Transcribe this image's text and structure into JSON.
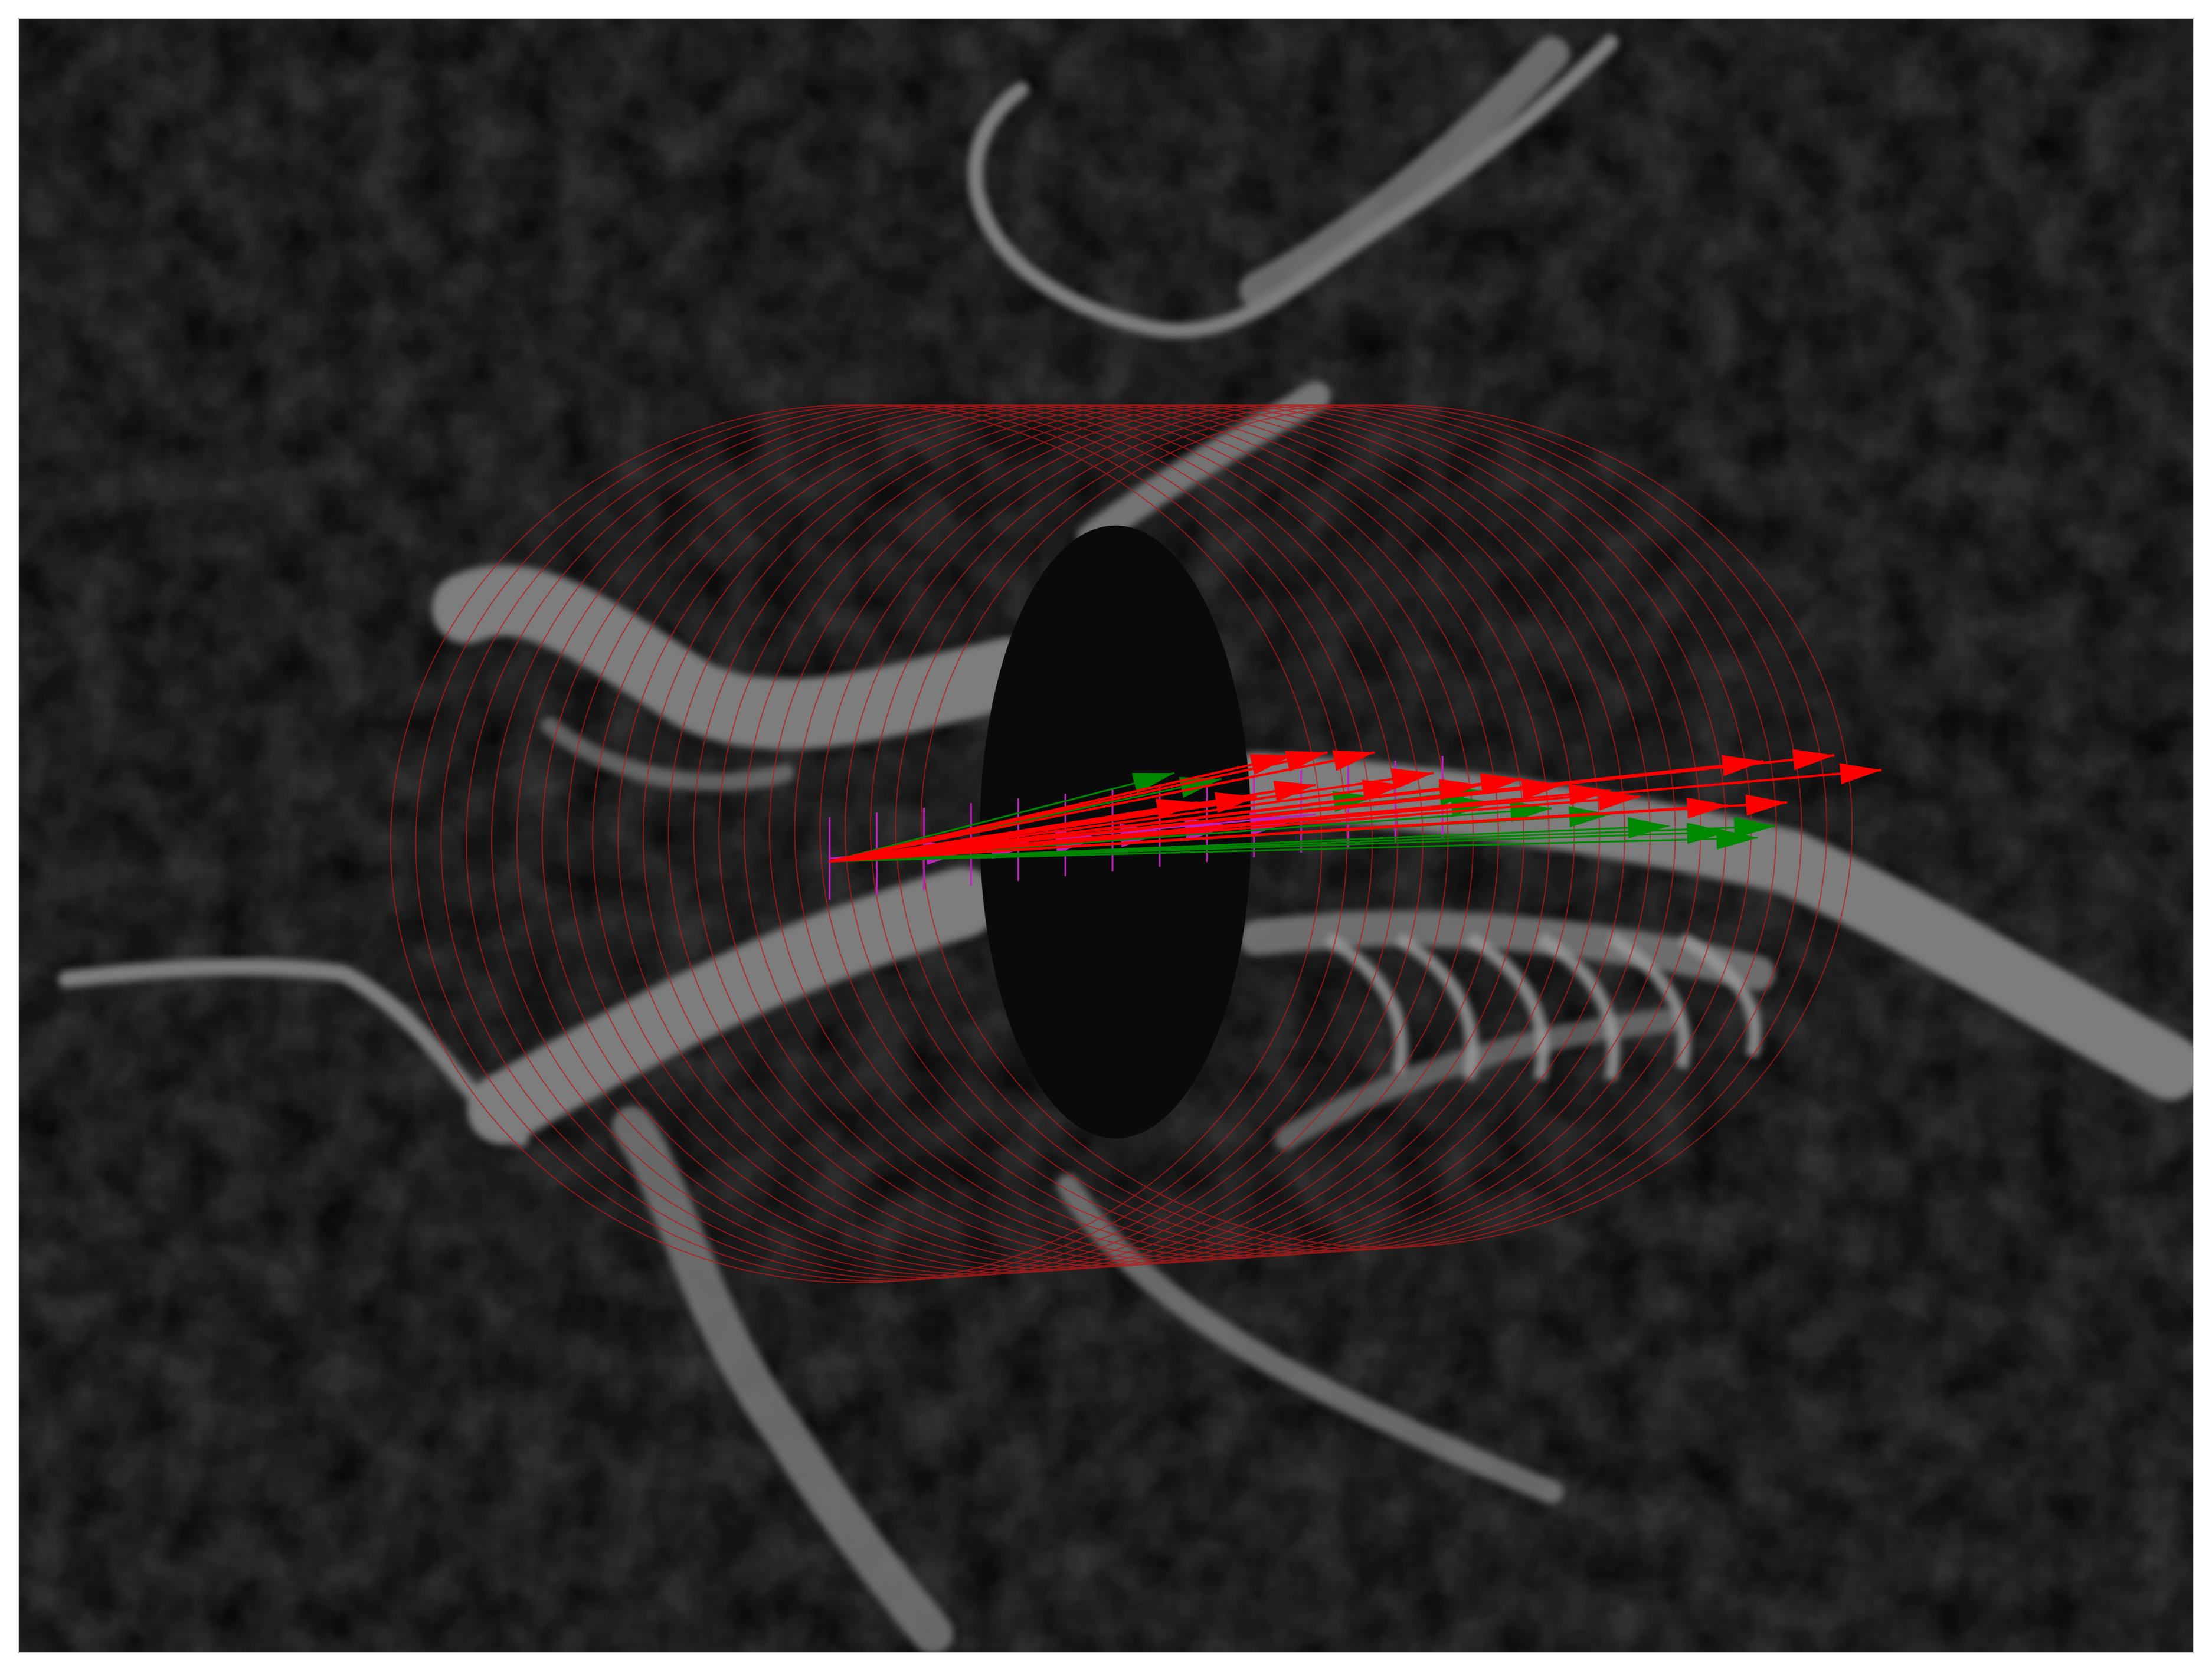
{
  "figure": {
    "description_visible_text": "",
    "background_color": "#050505",
    "border_color": "#c8c8c8",
    "colors": {
      "structure": "#8a8a8a",
      "ellipse_grid": "#b81a1a",
      "arrows_primary": "#ff0000",
      "arrows_secondary": "#008800",
      "axis_vectors": "#c020c0"
    },
    "elements": [
      "grayscale-3d-structure",
      "ellipse-sweep-grid",
      "red-vector-arrows",
      "green-vector-arrows",
      "magenta-axis-markers"
    ]
  }
}
